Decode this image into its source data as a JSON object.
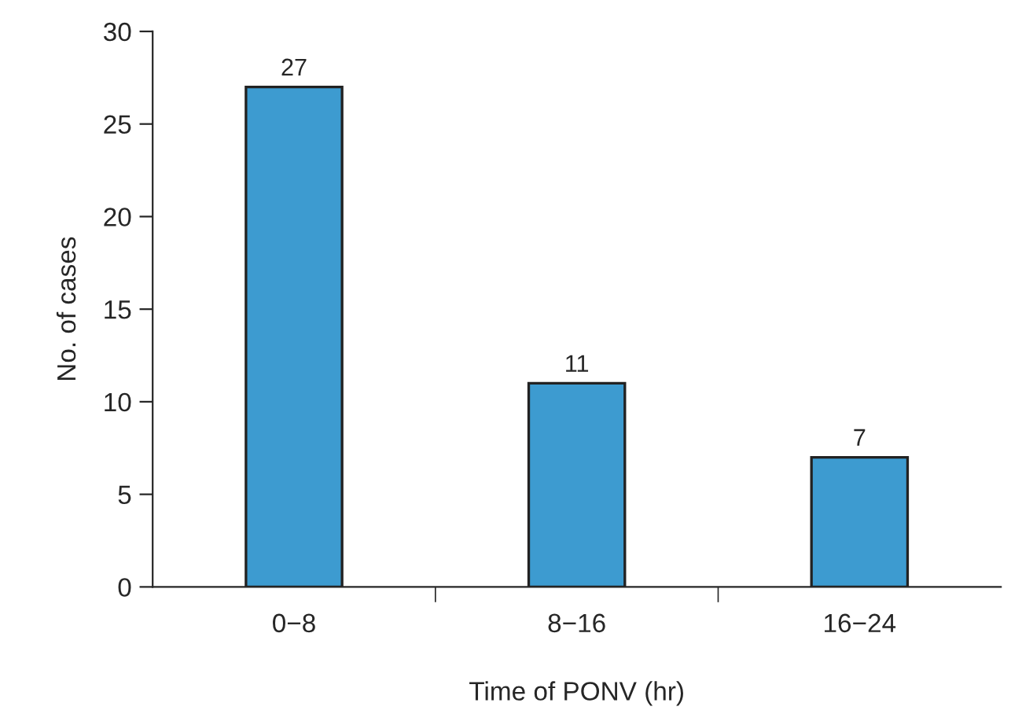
{
  "chart_data": {
    "type": "bar",
    "xlabel": "Time of PONV (hr)",
    "ylabel": "No. of cases",
    "categories": [
      "0−8",
      "8−16",
      "16−24"
    ],
    "values": [
      27,
      11,
      7
    ],
    "color": "#3d9bd0",
    "ylim": [
      0,
      30
    ],
    "yticks": [
      0,
      5,
      10,
      15,
      20,
      25,
      30
    ],
    "data_labels": true,
    "grid": false,
    "legend": false
  }
}
